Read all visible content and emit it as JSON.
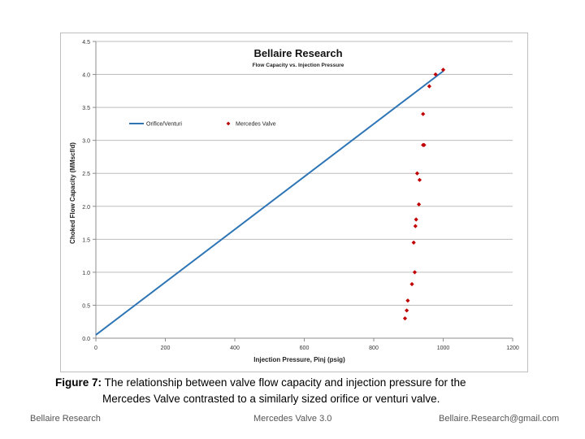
{
  "chart_data": {
    "type": "scatter",
    "title": "Bellaire Research",
    "subtitle": "Flow Capacity vs. Injection Pressure",
    "xlabel": "Injection Pressure, Pinj (psig)",
    "ylabel": "Choked Flow Capacity (MMscf/d)",
    "xlim": [
      0,
      1200
    ],
    "ylim": [
      0,
      4.5
    ],
    "xticks": [
      0,
      200,
      400,
      600,
      800,
      1000,
      1200
    ],
    "yticks": [
      "0.0",
      "0.5",
      "1.0",
      "1.5",
      "2.0",
      "2.5",
      "3.0",
      "3.5",
      "4.0",
      "4.5"
    ],
    "grid": true,
    "legend_position": "upper-left",
    "series": [
      {
        "name": "Orifice/Venturi",
        "kind": "line",
        "color": "#2e75b6",
        "x": [
          0,
          1000
        ],
        "y": [
          0.05,
          4.05
        ]
      },
      {
        "name": "Mercedes Valve",
        "kind": "scatter",
        "color": "#c00000",
        "x": [
          890,
          895,
          898,
          910,
          918,
          915,
          920,
          922,
          930,
          932,
          925,
          942,
          945,
          942,
          960,
          978,
          1000
        ],
        "y": [
          0.3,
          0.42,
          0.57,
          0.82,
          1.0,
          1.45,
          1.7,
          1.8,
          2.03,
          2.4,
          2.5,
          2.93,
          2.93,
          3.4,
          3.82,
          4.0,
          4.07
        ]
      }
    ]
  },
  "caption": {
    "label": "Figure 7:",
    "line1": "The relationship between valve flow capacity and injection pressure for the",
    "line2": "Mercedes Valve contrasted to a similarly sized orifice or venturi valve."
  },
  "footer": {
    "left": "Bellaire Research",
    "center": "Mercedes Valve 3.0",
    "right": "Bellaire.Research@gmail.com"
  }
}
